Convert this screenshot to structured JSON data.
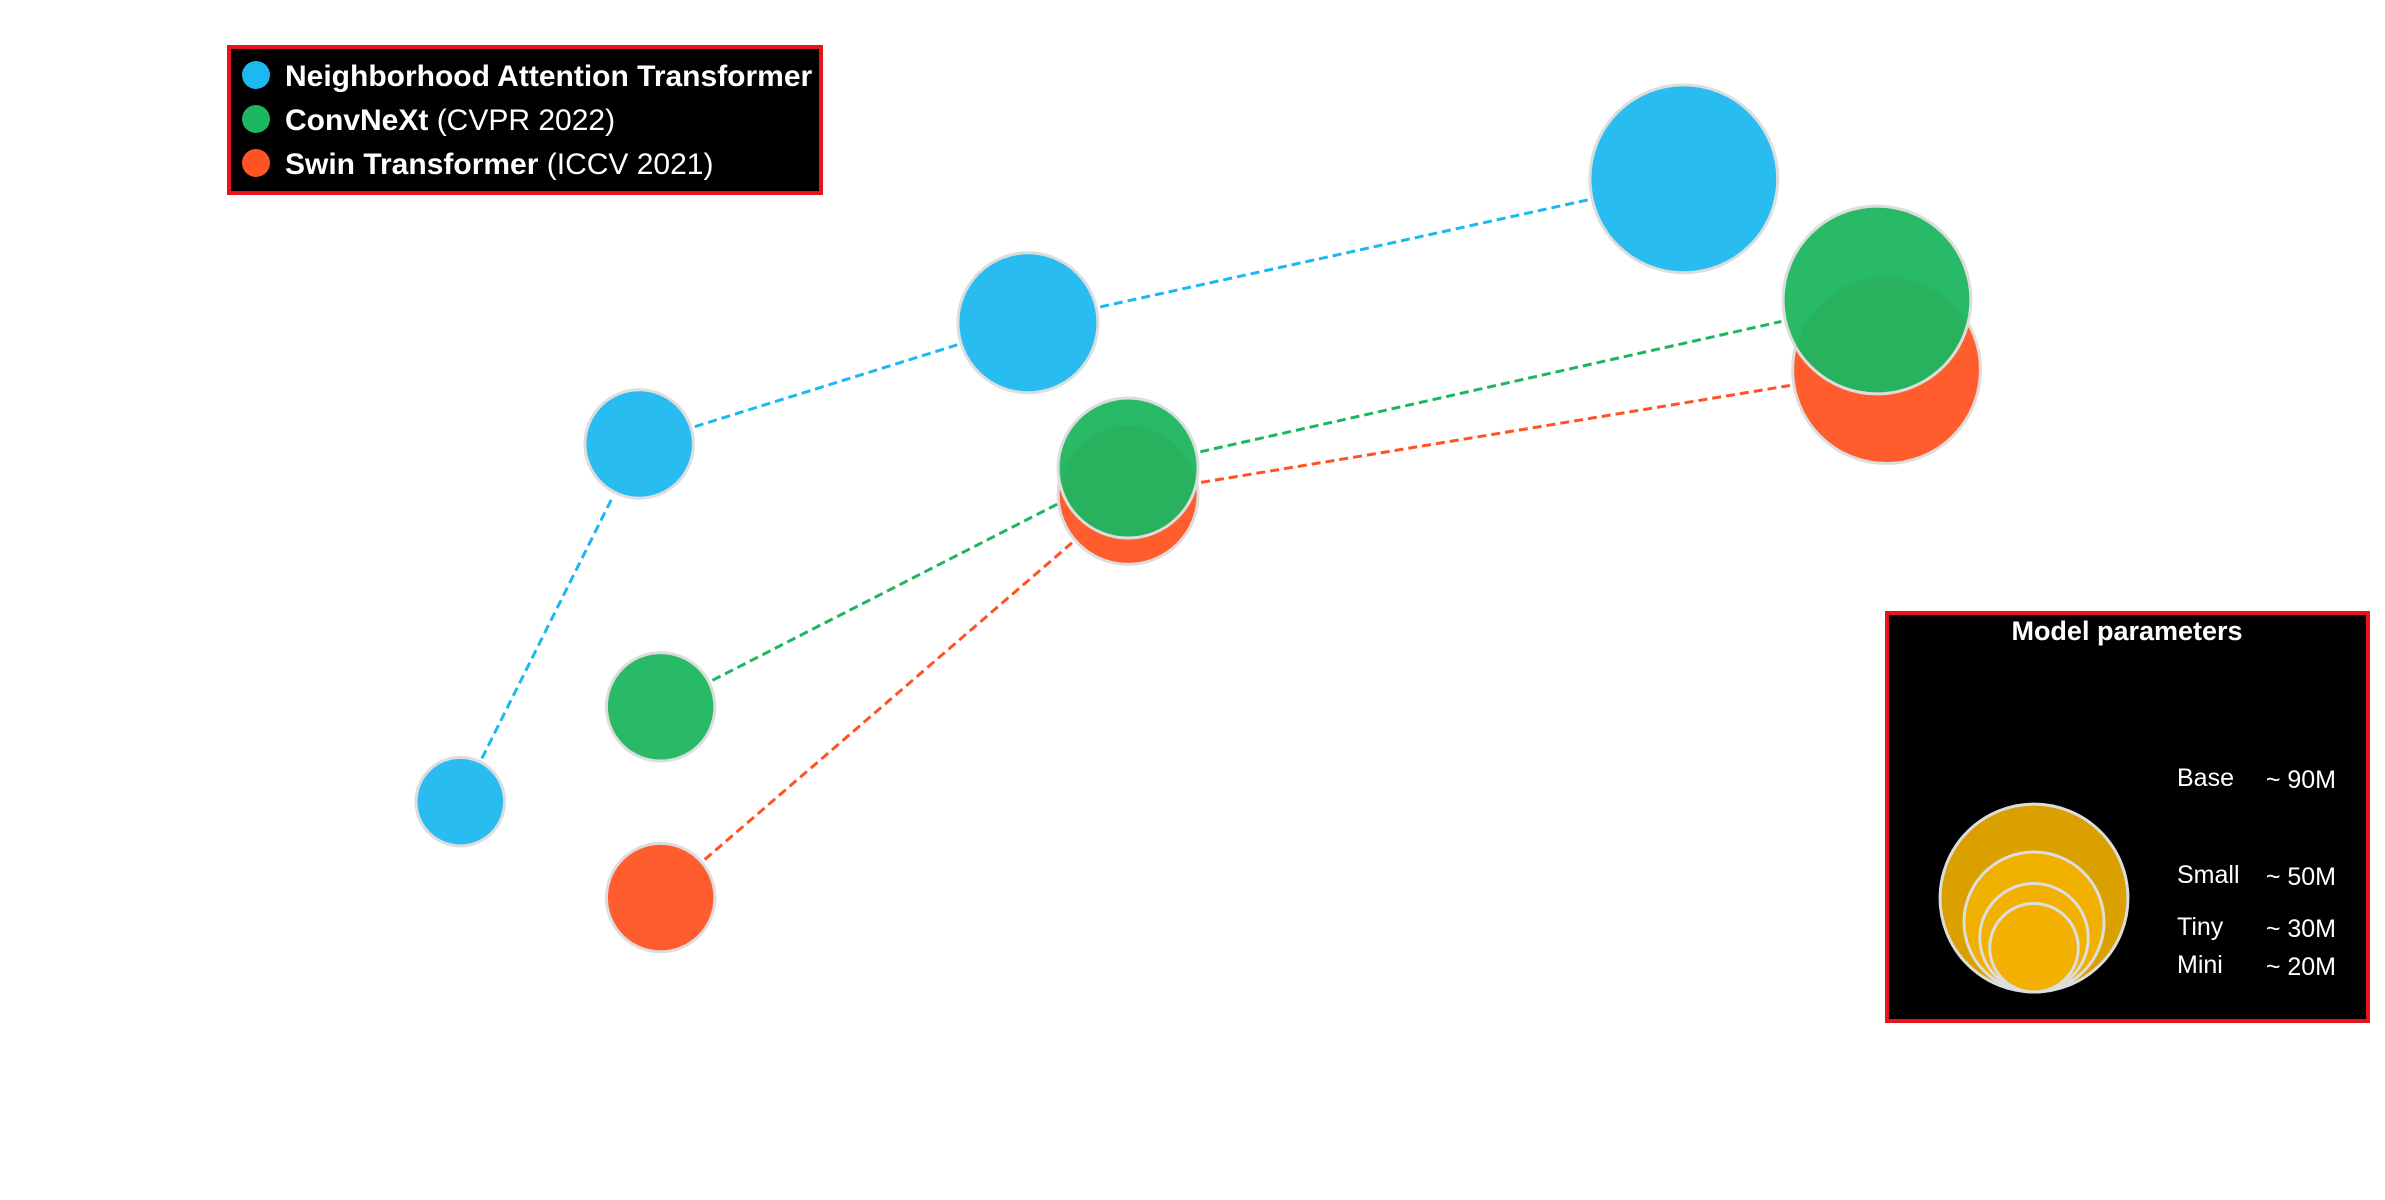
{
  "chart_data": {
    "type": "scatter",
    "title": "",
    "xlabel": "",
    "ylabel": "",
    "grid": false,
    "xlim": [
      0,
      1
    ],
    "ylim": [
      0,
      1
    ],
    "size_unit": "M params",
    "series": [
      {
        "name": "Neighborhood Attention Transformer",
        "name_suffix": "",
        "color": "#1CB8F0",
        "points": [
          {
            "x": 0.193,
            "y": 0.332,
            "size": 20
          },
          {
            "x": 0.268,
            "y": 0.63,
            "size": 30
          },
          {
            "x": 0.431,
            "y": 0.731,
            "size": 50
          },
          {
            "x": 0.706,
            "y": 0.851,
            "size": 90
          }
        ]
      },
      {
        "name": "ConvNeXt",
        "name_suffix": "(CVPR 2022)",
        "color": "#1DB660",
        "points": [
          {
            "x": 0.277,
            "y": 0.411,
            "size": 30
          },
          {
            "x": 0.473,
            "y": 0.61,
            "size": 50
          },
          {
            "x": 0.787,
            "y": 0.75,
            "size": 90
          }
        ]
      },
      {
        "name": "Swin Transformer",
        "name_suffix": "(ICCV 2021)",
        "color": "#FF5422",
        "points": [
          {
            "x": 0.277,
            "y": 0.252,
            "size": 30
          },
          {
            "x": 0.473,
            "y": 0.588,
            "size": 50
          },
          {
            "x": 0.791,
            "y": 0.692,
            "size": 90
          }
        ]
      }
    ],
    "size_legend": {
      "title": "Model parameters",
      "color": "#F2B100",
      "items": [
        {
          "label": "Base",
          "value_text": "~ 90M",
          "size": 90
        },
        {
          "label": "Small",
          "value_text": "~ 50M",
          "size": 50
        },
        {
          "label": "Tiny",
          "value_text": "~ 30M",
          "size": 30
        },
        {
          "label": "Mini",
          "value_text": "~ 20M",
          "size": 20
        }
      ]
    },
    "legend_position": "top-left",
    "size_legend_position": "right"
  }
}
